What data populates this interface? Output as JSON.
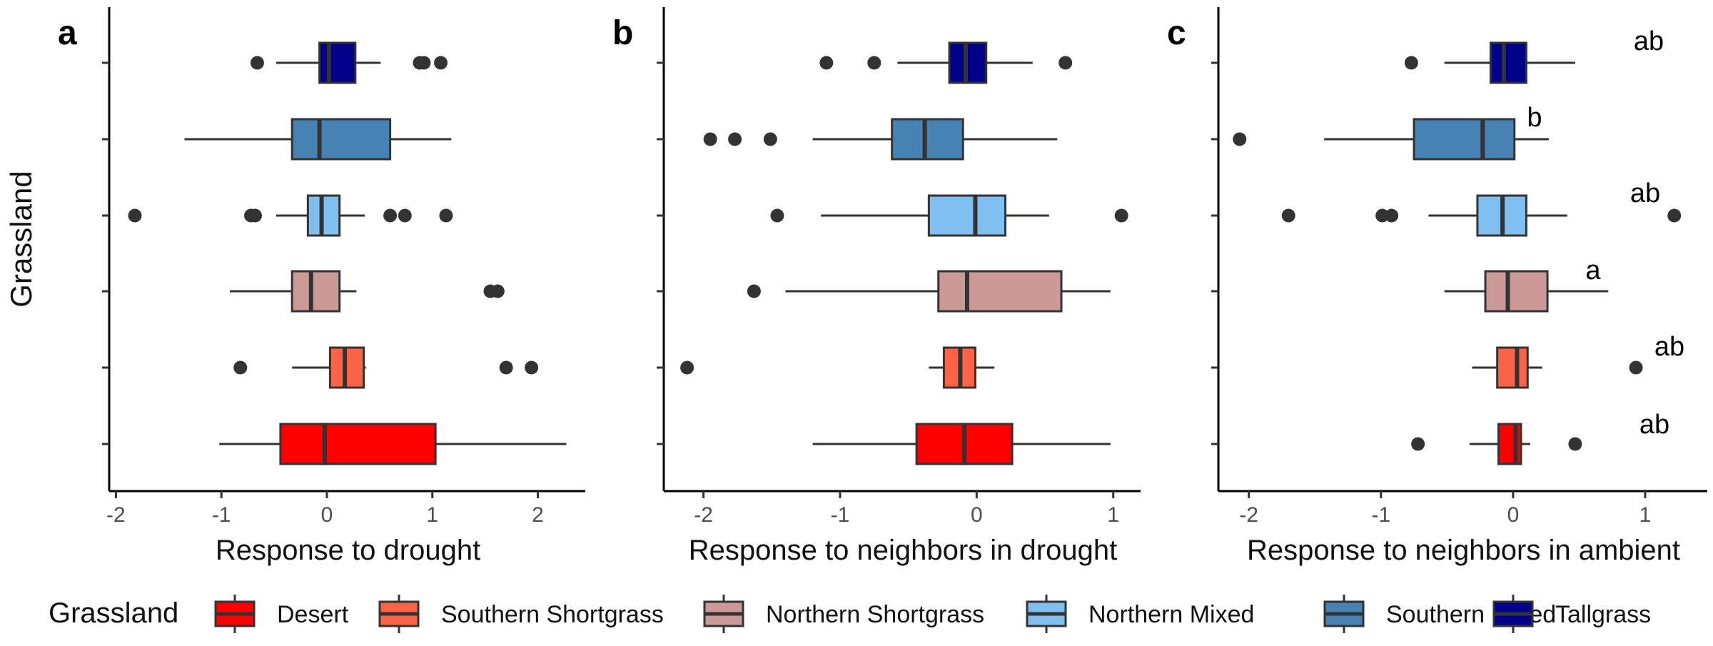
{
  "y_axis_title": "Grassland",
  "legend": {
    "title": "Grassland",
    "items": [
      {
        "label": "Desert",
        "color": "#FF0000"
      },
      {
        "label": "Southern Shortgrass",
        "color": "#FF6347"
      },
      {
        "label": "Northern Shortgrass",
        "color": "#CC9999"
      },
      {
        "label": "Northern Mixed",
        "color": "#7FBFEF"
      },
      {
        "label": "Southern Mixed",
        "color": "#4682B4"
      },
      {
        "label": "Tallgrass",
        "color": "#00008B"
      }
    ]
  },
  "chart_data": [
    {
      "type": "box",
      "panel_label": "a",
      "xlabel": "Response to drought",
      "xlim": [
        -2.05,
        2.45
      ],
      "xticks": [
        -2,
        -1,
        0,
        1,
        2
      ],
      "groups": [
        "Tallgrass",
        "Southern Mixed",
        "Northern Mixed",
        "Northern Shortgrass",
        "Southern Shortgrass",
        "Desert"
      ],
      "boxes": [
        {
          "group": "Tallgrass",
          "q1": -0.07,
          "median": 0.02,
          "q3": 0.27,
          "whisker_low": -0.48,
          "whisker_high": 0.51,
          "outliers": [
            -0.66,
            0.88,
            0.92,
            1.08
          ]
        },
        {
          "group": "Southern Mixed",
          "q1": -0.33,
          "median": -0.07,
          "q3": 0.6,
          "whisker_low": -1.35,
          "whisker_high": 1.18,
          "outliers": []
        },
        {
          "group": "Northern Mixed",
          "q1": -0.18,
          "median": -0.05,
          "q3": 0.12,
          "whisker_low": -0.48,
          "whisker_high": 0.36,
          "outliers": [
            -1.82,
            -0.72,
            -0.68,
            0.6,
            0.74,
            1.13
          ]
        },
        {
          "group": "Northern Shortgrass",
          "q1": -0.33,
          "median": -0.15,
          "q3": 0.12,
          "whisker_low": -0.92,
          "whisker_high": 0.28,
          "outliers": [
            1.55,
            1.62
          ]
        },
        {
          "group": "Southern Shortgrass",
          "q1": 0.03,
          "median": 0.17,
          "q3": 0.35,
          "whisker_low": -0.33,
          "whisker_high": 0.37,
          "outliers": [
            -0.82,
            1.7,
            1.94
          ]
        },
        {
          "group": "Desert",
          "q1": -0.44,
          "median": -0.02,
          "q3": 1.03,
          "whisker_low": -1.02,
          "whisker_high": 2.27,
          "outliers": []
        }
      ]
    },
    {
      "type": "box",
      "panel_label": "b",
      "xlabel": "Response to neighbors in drought",
      "xlim": [
        -2.28,
        1.2
      ],
      "xticks": [
        -2,
        -1,
        0,
        1
      ],
      "groups": [
        "Tallgrass",
        "Southern Mixed",
        "Northern Mixed",
        "Northern Shortgrass",
        "Southern Shortgrass",
        "Desert"
      ],
      "boxes": [
        {
          "group": "Tallgrass",
          "q1": -0.2,
          "median": -0.08,
          "q3": 0.07,
          "whisker_low": -0.58,
          "whisker_high": 0.41,
          "outliers": [
            -1.1,
            -0.75,
            0.65
          ]
        },
        {
          "group": "Southern Mixed",
          "q1": -0.62,
          "median": -0.38,
          "q3": -0.1,
          "whisker_low": -1.2,
          "whisker_high": 0.59,
          "outliers": [
            -1.95,
            -1.77,
            -1.51
          ]
        },
        {
          "group": "Northern Mixed",
          "q1": -0.35,
          "median": -0.01,
          "q3": 0.21,
          "whisker_low": -1.14,
          "whisker_high": 0.53,
          "outliers": [
            -1.46,
            1.06
          ]
        },
        {
          "group": "Northern Shortgrass",
          "q1": -0.28,
          "median": -0.07,
          "q3": 0.62,
          "whisker_low": -1.4,
          "whisker_high": 0.98,
          "outliers": [
            -1.63
          ]
        },
        {
          "group": "Southern Shortgrass",
          "q1": -0.24,
          "median": -0.12,
          "q3": -0.01,
          "whisker_low": -0.35,
          "whisker_high": 0.13,
          "outliers": [
            -2.12
          ]
        },
        {
          "group": "Desert",
          "q1": -0.44,
          "median": -0.09,
          "q3": 0.26,
          "whisker_low": -1.2,
          "whisker_high": 0.98,
          "outliers": []
        }
      ]
    },
    {
      "type": "box",
      "panel_label": "c",
      "xlabel": "Response to neighbors in ambient",
      "xlim": [
        -2.22,
        1.47
      ],
      "xticks": [
        -2,
        -1,
        0,
        1
      ],
      "groups": [
        "Tallgrass",
        "Southern Mixed",
        "Northern Mixed",
        "Northern Shortgrass",
        "Southern Shortgrass",
        "Desert"
      ],
      "boxes": [
        {
          "group": "Tallgrass",
          "q1": -0.17,
          "median": -0.07,
          "q3": 0.1,
          "whisker_low": -0.52,
          "whisker_high": 0.47,
          "outliers": [
            -0.77
          ]
        },
        {
          "group": "Southern Mixed",
          "q1": -0.75,
          "median": -0.23,
          "q3": 0.01,
          "whisker_low": -1.43,
          "whisker_high": 0.27,
          "outliers": [
            -2.07
          ]
        },
        {
          "group": "Northern Mixed",
          "q1": -0.27,
          "median": -0.08,
          "q3": 0.1,
          "whisker_low": -0.64,
          "whisker_high": 0.41,
          "outliers": [
            -1.7,
            -0.99,
            -0.92,
            1.22
          ]
        },
        {
          "group": "Northern Shortgrass",
          "q1": -0.21,
          "median": -0.04,
          "q3": 0.26,
          "whisker_low": -0.52,
          "whisker_high": 0.72,
          "outliers": []
        },
        {
          "group": "Southern Shortgrass",
          "q1": -0.12,
          "median": 0.03,
          "q3": 0.11,
          "whisker_low": -0.31,
          "whisker_high": 0.22,
          "outliers": [
            0.93
          ]
        },
        {
          "group": "Desert",
          "q1": -0.11,
          "median": 0.02,
          "q3": 0.06,
          "whisker_low": -0.33,
          "whisker_high": 0.13,
          "outliers": [
            -0.72,
            0.47
          ]
        }
      ],
      "letters": [
        {
          "group": "Tallgrass",
          "text": "ab"
        },
        {
          "group": "Southern Mixed",
          "text": "b"
        },
        {
          "group": "Northern Mixed",
          "text": "ab"
        },
        {
          "group": "Northern Shortgrass",
          "text": "a"
        },
        {
          "group": "Southern Shortgrass",
          "text": "ab"
        },
        {
          "group": "Desert",
          "text": "ab"
        }
      ]
    }
  ]
}
